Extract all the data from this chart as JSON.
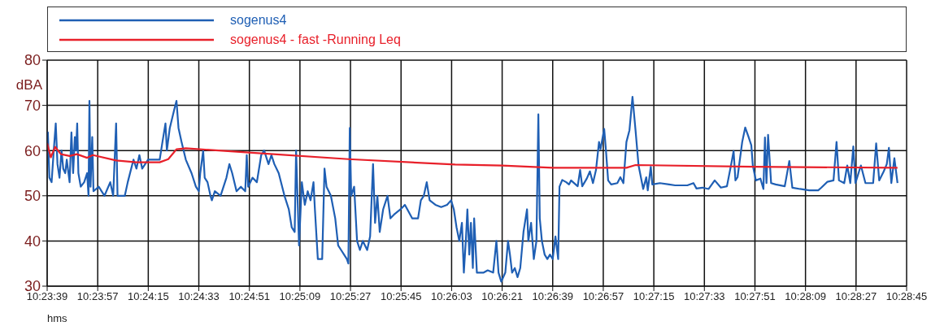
{
  "chart_data": {
    "type": "line",
    "xlabel": "hms",
    "ylabel": "dBA",
    "xlim": [
      10.39417,
      10.47917
    ],
    "xticks": [
      {
        "value": 10.39417,
        "label": "10:23:39"
      },
      {
        "value": 10.39917,
        "label": "10:23:57"
      },
      {
        "value": 10.40417,
        "label": "10:24:15"
      },
      {
        "value": 10.40917,
        "label": "10:24:33"
      },
      {
        "value": 10.41417,
        "label": "10:24:51"
      },
      {
        "value": 10.41917,
        "label": "10:25:09"
      },
      {
        "value": 10.42417,
        "label": "10:25:27"
      },
      {
        "value": 10.42917,
        "label": "10:25:45"
      },
      {
        "value": 10.43417,
        "label": "10:26:03"
      },
      {
        "value": 10.43917,
        "label": "10:26:21"
      },
      {
        "value": 10.44417,
        "label": "10:26:39"
      },
      {
        "value": 10.44917,
        "label": "10:26:57"
      },
      {
        "value": 10.45417,
        "label": "10:27:15"
      },
      {
        "value": 10.45917,
        "label": "10:27:33"
      },
      {
        "value": 10.46417,
        "label": "10:27:51"
      },
      {
        "value": 10.46917,
        "label": "10:28:09"
      },
      {
        "value": 10.47417,
        "label": "10:28:27"
      },
      {
        "value": 10.47917,
        "label": "10:28:45"
      }
    ],
    "ylim": [
      30,
      80
    ],
    "yticks": [
      30,
      40,
      50,
      60,
      70,
      80
    ],
    "grid": true,
    "legend": "top",
    "series": [
      {
        "name": "sogenus4",
        "color": "#1f5fb4",
        "x": [
          10.39417,
          10.39424,
          10.39439,
          10.39461,
          10.39482,
          10.39502,
          10.39519,
          10.39539,
          10.39559,
          10.39576,
          10.39596,
          10.39611,
          10.39639,
          10.39657,
          10.39674,
          10.39691,
          10.39703,
          10.39714,
          10.39726,
          10.39749,
          10.39783,
          10.39812,
          10.39826,
          10.39835,
          10.39846,
          10.39863,
          10.39875,
          10.39927,
          10.39984,
          10.40041,
          10.4007,
          10.40099,
          10.40113,
          10.40185,
          10.40214,
          10.40271,
          10.403,
          10.40329,
          10.40357,
          10.40415,
          10.40472,
          10.4053,
          10.40558,
          10.40587,
          10.40601,
          10.4063,
          10.40673,
          10.40696,
          10.40716,
          10.40745,
          10.40788,
          10.40845,
          10.40888,
          10.40917,
          10.40931,
          10.4096,
          10.40975,
          10.41003,
          10.41032,
          10.41046,
          10.41075,
          10.41132,
          10.4119,
          10.41219,
          10.41247,
          10.4129,
          10.41333,
          10.41376,
          10.41391,
          10.41405,
          10.41448,
          10.41491,
          10.41534,
          10.41563,
          10.41606,
          10.41635,
          10.41664,
          10.41707,
          10.41764,
          10.41807,
          10.41836,
          10.41865,
          10.41879,
          10.41893,
          10.41908,
          10.41936,
          10.41965,
          10.41994,
          10.42022,
          10.42051,
          10.42065,
          10.42094,
          10.42137,
          10.4216,
          10.4218,
          10.42223,
          10.42266,
          10.42295,
          10.42324,
          10.42353,
          10.42381,
          10.42396,
          10.4241,
          10.42424,
          10.42453,
          10.42482,
          10.4251,
          10.42539,
          10.42582,
          10.42611,
          10.4264,
          10.4266,
          10.42683,
          10.42706,
          10.4274,
          10.42783,
          10.42812,
          10.42855,
          10.42912,
          10.42955,
          10.43027,
          10.43085,
          10.43113,
          10.43142,
          10.43171,
          10.432,
          10.43257,
          10.43314,
          10.43372,
          10.43412,
          10.43439,
          10.43466,
          10.43493,
          10.43519,
          10.43538,
          10.4356,
          10.43573,
          10.43592,
          10.43608,
          10.43627,
          10.4364,
          10.43667,
          10.43694,
          10.43734,
          10.43774,
          10.43828,
          10.4386,
          10.43881,
          10.43908,
          10.43948,
          10.43975,
          10.43994,
          10.44015,
          10.44042,
          10.44069,
          10.44096,
          10.44128,
          10.44149,
          10.44163,
          10.44176,
          10.44203,
          10.4423,
          10.44256,
          10.44275,
          10.44289,
          10.4431,
          10.44337,
          10.44364,
          10.4439,
          10.44417,
          10.44444,
          10.44471,
          10.44484,
          10.44511,
          10.44551,
          10.44578,
          10.44598,
          10.44664,
          10.44688,
          10.44709,
          10.44754,
          10.44785,
          10.44815,
          10.44845,
          10.44875,
          10.4489,
          10.44926,
          10.44944,
          10.44965,
          10.44995,
          10.45056,
          10.45086,
          10.45116,
          10.45146,
          10.45176,
          10.45206,
          10.45236,
          10.45266,
          10.45312,
          10.45342,
          10.45357,
          10.45387,
          10.45402,
          10.45477,
          10.45568,
          10.45628,
          10.45748,
          10.45809,
          10.45839,
          10.45899,
          10.45959,
          10.46019,
          10.4608,
          10.4614,
          10.46185,
          10.46206,
          10.46224,
          10.46245,
          10.46291,
          10.46321,
          10.46351,
          10.46381,
          10.46396,
          10.46426,
          10.46471,
          10.46501,
          10.46516,
          10.46531,
          10.46547,
          10.46577,
          10.46622,
          10.46712,
          10.46757,
          10.46787,
          10.46863,
          10.46953,
          10.47043,
          10.47074,
          10.47134,
          10.47194,
          10.47224,
          10.47248,
          10.473,
          10.4733,
          10.4736,
          10.4739,
          10.47411,
          10.47465,
          10.4751,
          10.47586,
          10.47616,
          10.47646,
          10.47691,
          10.47721,
          10.47742,
          10.47766,
          10.47796,
          10.47827
        ],
        "values": [
          62,
          64,
          54,
          53,
          60,
          66,
          57,
          54,
          60,
          56,
          55,
          58,
          53,
          64,
          55,
          63,
          60,
          66,
          55,
          52,
          53,
          55,
          50,
          71,
          52,
          63,
          51,
          52,
          50,
          53,
          50,
          66,
          50,
          50,
          53,
          58,
          56,
          59,
          56,
          58,
          58,
          58,
          62,
          66,
          60,
          65,
          69,
          71,
          65,
          62,
          58,
          55,
          52,
          51,
          55,
          60,
          54,
          53,
          50,
          49,
          51,
          50,
          54,
          57,
          55,
          51,
          52,
          51,
          59,
          52,
          54,
          53,
          59,
          60,
          57,
          59,
          57,
          55,
          50,
          47,
          43,
          42,
          60,
          50,
          39,
          53,
          48,
          51,
          49,
          53,
          47,
          36,
          36,
          56,
          52,
          50,
          45,
          39,
          38,
          37,
          36,
          35,
          65,
          50,
          52,
          40,
          38,
          40,
          38,
          41,
          57,
          44,
          50,
          42,
          47,
          50,
          45,
          46,
          47,
          48,
          45,
          45,
          49,
          50,
          53,
          49,
          48,
          47.5,
          48,
          49,
          47,
          43,
          40,
          44,
          33,
          41,
          47,
          37,
          44,
          34,
          45,
          33,
          33,
          33,
          33.5,
          33,
          40,
          33,
          31,
          33,
          40,
          37,
          33,
          34,
          32,
          34,
          42,
          45,
          47,
          40,
          44,
          36,
          40,
          68,
          45,
          40,
          37,
          36,
          37,
          36,
          41,
          36,
          52,
          53.5,
          53,
          52.5,
          53.4,
          52.1,
          55.7,
          52.1,
          53.8,
          55.4,
          52.8,
          55.7,
          61.9,
          60.3,
          64.8,
          59.9,
          53.4,
          52.5,
          52.8,
          54.1,
          52.8,
          61.9,
          64.5,
          71.9,
          64.5,
          56.7,
          51.5,
          54.1,
          51.2,
          56.4,
          52.5,
          52.8,
          52.5,
          52.3,
          52.3,
          52.8,
          51.6,
          51.8,
          51.5,
          53.4,
          51.8,
          52.1,
          57.3,
          59.9,
          53.4,
          54.1,
          61.9,
          65.1,
          63.2,
          61.2,
          56.7,
          53.4,
          53.8,
          51.5,
          62.9,
          52.8,
          63.5,
          52.8,
          52.5,
          52.1,
          57.7,
          51.8,
          51.5,
          51.2,
          51.2,
          51.8,
          53.1,
          53.4,
          61.9,
          53.4,
          52.8,
          56.7,
          52.8,
          60.9,
          52.8,
          56.7,
          52.8,
          52.8,
          61.6,
          53.4,
          55.4,
          57,
          60.6,
          52.8,
          58.3,
          52.8
        ]
      },
      {
        "name": "sogenus4 - fast -Running Leq",
        "color": "#e8202a",
        "x": [
          10.39417,
          10.39453,
          10.39496,
          10.39553,
          10.39639,
          10.39711,
          10.39812,
          10.39869,
          10.40099,
          10.403,
          10.4053,
          10.40615,
          10.40697,
          10.40788,
          10.41534,
          10.42396,
          10.43452,
          10.43917,
          10.44417,
          10.45146,
          10.45236,
          10.46411,
          10.47827
        ],
        "values": [
          61.6,
          58.5,
          60.8,
          59.2,
          58.8,
          59.2,
          58.4,
          59,
          57.8,
          57.4,
          57.4,
          58.1,
          60.3,
          60.5,
          59.4,
          58.1,
          56.9,
          56.7,
          56.2,
          56.2,
          56.8,
          56.4,
          56.2
        ]
      }
    ]
  }
}
